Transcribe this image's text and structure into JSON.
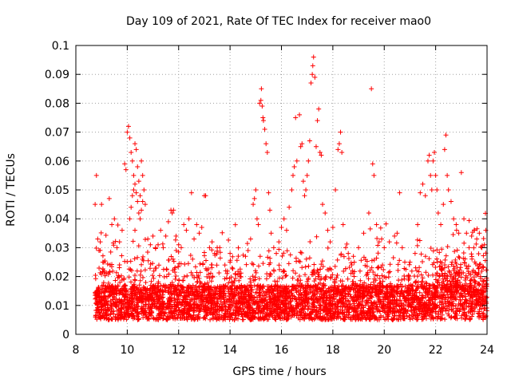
{
  "chart_data": {
    "type": "scatter",
    "title": "Day 109 of 2021, Rate Of TEC Index for receiver mao0",
    "xlabel": "GPS time / hours",
    "ylabel": "ROTI / TECUs",
    "xlim": [
      8,
      24
    ],
    "ylim": [
      0,
      0.1
    ],
    "x_ticks": [
      "8",
      "10",
      "12",
      "14",
      "16",
      "18",
      "20",
      "22",
      "24"
    ],
    "y_ticks": [
      "0",
      "0.01",
      "0.02",
      "0.03",
      "0.04",
      "0.05",
      "0.06",
      "0.07",
      "0.08",
      "0.09",
      "0.1"
    ],
    "grid": true,
    "marker": "+",
    "color": "#ff0000",
    "series": [
      {
        "name": "ROTI",
        "points": [
          [
            8.75,
            0.045
          ],
          [
            8.8,
            0.055
          ],
          [
            8.85,
            0.033
          ],
          [
            8.9,
            0.029
          ],
          [
            8.95,
            0.032
          ],
          [
            9.0,
            0.045
          ],
          [
            9.05,
            0.025
          ],
          [
            9.1,
            0.022
          ],
          [
            9.3,
            0.047
          ],
          [
            9.4,
            0.038
          ],
          [
            9.5,
            0.04
          ],
          [
            9.6,
            0.03
          ],
          [
            9.7,
            0.032
          ],
          [
            9.8,
            0.036
          ],
          [
            9.9,
            0.059
          ],
          [
            9.95,
            0.057
          ],
          [
            10.0,
            0.07
          ],
          [
            10.05,
            0.072
          ],
          [
            10.1,
            0.068
          ],
          [
            10.15,
            0.063
          ],
          [
            10.2,
            0.06
          ],
          [
            10.25,
            0.055
          ],
          [
            10.3,
            0.066
          ],
          [
            10.35,
            0.064
          ],
          [
            10.4,
            0.058
          ],
          [
            10.45,
            0.053
          ],
          [
            10.5,
            0.048
          ],
          [
            10.55,
            0.06
          ],
          [
            10.6,
            0.055
          ],
          [
            10.65,
            0.05
          ],
          [
            10.7,
            0.045
          ],
          [
            10.1,
            0.04
          ],
          [
            10.15,
            0.044
          ],
          [
            10.2,
            0.048
          ],
          [
            10.25,
            0.05
          ],
          [
            10.3,
            0.052
          ],
          [
            10.35,
            0.049
          ],
          [
            10.4,
            0.046
          ],
          [
            10.45,
            0.042
          ],
          [
            10.5,
            0.04
          ],
          [
            10.55,
            0.043
          ],
          [
            10.6,
            0.046
          ],
          [
            10.3,
            0.036
          ],
          [
            10.8,
            0.033
          ],
          [
            10.9,
            0.031
          ],
          [
            11.0,
            0.034
          ],
          [
            11.1,
            0.03
          ],
          [
            11.2,
            0.031
          ],
          [
            11.3,
            0.036
          ],
          [
            11.4,
            0.03
          ],
          [
            11.5,
            0.034
          ],
          [
            11.6,
            0.039
          ],
          [
            11.7,
            0.043
          ],
          [
            11.75,
            0.042
          ],
          [
            11.8,
            0.043
          ],
          [
            11.9,
            0.034
          ],
          [
            12.0,
            0.031
          ],
          [
            12.1,
            0.03
          ],
          [
            12.2,
            0.038
          ],
          [
            12.3,
            0.036
          ],
          [
            12.4,
            0.04
          ],
          [
            12.5,
            0.049
          ],
          [
            12.6,
            0.033
          ],
          [
            12.7,
            0.038
          ],
          [
            12.8,
            0.035
          ],
          [
            12.9,
            0.037
          ],
          [
            13.0,
            0.048
          ],
          [
            13.05,
            0.048
          ],
          [
            13.2,
            0.03
          ],
          [
            13.3,
            0.032
          ],
          [
            13.4,
            0.028
          ],
          [
            13.5,
            0.03
          ],
          [
            13.6,
            0.03
          ],
          [
            13.8,
            0.024
          ],
          [
            14.0,
            0.025
          ],
          [
            14.2,
            0.021
          ],
          [
            14.4,
            0.02
          ],
          [
            14.6,
            0.027
          ],
          [
            14.7,
            0.029
          ],
          [
            14.8,
            0.033
          ],
          [
            14.9,
            0.045
          ],
          [
            14.95,
            0.047
          ],
          [
            15.0,
            0.05
          ],
          [
            15.05,
            0.04
          ],
          [
            15.1,
            0.038
          ],
          [
            15.15,
            0.08
          ],
          [
            15.2,
            0.081
          ],
          [
            15.22,
            0.085
          ],
          [
            15.25,
            0.079
          ],
          [
            15.28,
            0.075
          ],
          [
            15.3,
            0.074
          ],
          [
            15.35,
            0.071
          ],
          [
            15.4,
            0.066
          ],
          [
            15.45,
            0.063
          ],
          [
            15.5,
            0.049
          ],
          [
            15.55,
            0.043
          ],
          [
            15.6,
            0.035
          ],
          [
            15.7,
            0.03
          ],
          [
            15.8,
            0.028
          ],
          [
            15.9,
            0.032
          ],
          [
            16.0,
            0.037
          ],
          [
            16.1,
            0.04
          ],
          [
            16.2,
            0.036
          ],
          [
            16.3,
            0.044
          ],
          [
            16.4,
            0.05
          ],
          [
            16.45,
            0.055
          ],
          [
            16.5,
            0.058
          ],
          [
            16.55,
            0.075
          ],
          [
            16.6,
            0.06
          ],
          [
            16.7,
            0.076
          ],
          [
            16.75,
            0.065
          ],
          [
            16.8,
            0.066
          ],
          [
            16.85,
            0.053
          ],
          [
            16.9,
            0.048
          ],
          [
            16.95,
            0.05
          ],
          [
            17.0,
            0.055
          ],
          [
            17.05,
            0.06
          ],
          [
            17.1,
            0.067
          ],
          [
            17.15,
            0.087
          ],
          [
            17.2,
            0.09
          ],
          [
            17.22,
            0.093
          ],
          [
            17.25,
            0.096
          ],
          [
            17.3,
            0.089
          ],
          [
            17.35,
            0.065
          ],
          [
            17.4,
            0.074
          ],
          [
            17.45,
            0.078
          ],
          [
            17.5,
            0.063
          ],
          [
            17.55,
            0.062
          ],
          [
            17.6,
            0.045
          ],
          [
            17.7,
            0.042
          ],
          [
            17.8,
            0.036
          ],
          [
            17.9,
            0.032
          ],
          [
            18.0,
            0.037
          ],
          [
            18.1,
            0.05
          ],
          [
            18.2,
            0.064
          ],
          [
            18.25,
            0.066
          ],
          [
            18.3,
            0.07
          ],
          [
            18.35,
            0.063
          ],
          [
            18.4,
            0.038
          ],
          [
            18.5,
            0.03
          ],
          [
            18.6,
            0.028
          ],
          [
            18.8,
            0.027
          ],
          [
            19.0,
            0.03
          ],
          [
            19.2,
            0.035
          ],
          [
            19.4,
            0.042
          ],
          [
            19.5,
            0.085
          ],
          [
            19.55,
            0.059
          ],
          [
            19.6,
            0.055
          ],
          [
            19.7,
            0.038
          ],
          [
            19.8,
            0.032
          ],
          [
            19.9,
            0.033
          ],
          [
            20.0,
            0.03
          ],
          [
            20.2,
            0.032
          ],
          [
            20.4,
            0.034
          ],
          [
            20.5,
            0.035
          ],
          [
            20.6,
            0.049
          ],
          [
            20.7,
            0.03
          ],
          [
            20.8,
            0.025
          ],
          [
            21.0,
            0.025
          ],
          [
            21.2,
            0.028
          ],
          [
            21.3,
            0.038
          ],
          [
            21.4,
            0.049
          ],
          [
            21.5,
            0.052
          ],
          [
            21.6,
            0.048
          ],
          [
            21.7,
            0.06
          ],
          [
            21.75,
            0.062
          ],
          [
            21.8,
            0.055
          ],
          [
            21.85,
            0.05
          ],
          [
            21.9,
            0.06
          ],
          [
            21.95,
            0.063
          ],
          [
            22.0,
            0.055
          ],
          [
            22.05,
            0.05
          ],
          [
            22.1,
            0.042
          ],
          [
            22.2,
            0.038
          ],
          [
            22.3,
            0.045
          ],
          [
            22.35,
            0.064
          ],
          [
            22.4,
            0.069
          ],
          [
            22.45,
            0.055
          ],
          [
            22.5,
            0.05
          ],
          [
            22.6,
            0.046
          ],
          [
            22.7,
            0.04
          ],
          [
            22.8,
            0.038
          ],
          [
            22.9,
            0.035
          ],
          [
            23.0,
            0.056
          ],
          [
            23.1,
            0.04
          ],
          [
            23.2,
            0.035
          ],
          [
            23.3,
            0.03
          ],
          [
            23.4,
            0.034
          ],
          [
            23.5,
            0.036
          ],
          [
            23.6,
            0.033
          ],
          [
            23.7,
            0.035
          ],
          [
            23.8,
            0.03
          ],
          [
            23.9,
            0.031
          ],
          [
            23.95,
            0.036
          ]
        ]
      }
    ]
  }
}
